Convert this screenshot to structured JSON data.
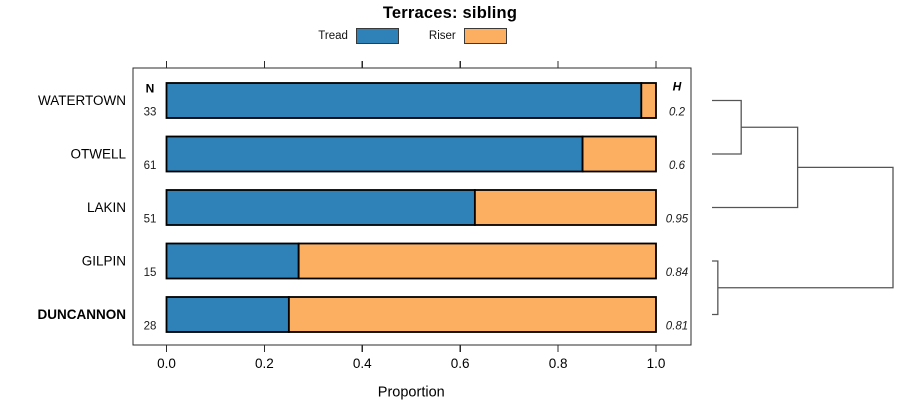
{
  "title": "Terraces: sibling",
  "legend": {
    "items": [
      {
        "label": "Tread",
        "color": "#2E82B8"
      },
      {
        "label": "Riser",
        "color": "#FCAE61"
      }
    ]
  },
  "chart_data": {
    "type": "bar",
    "orientation": "horizontal",
    "stacked": true,
    "title": "Terraces: sibling",
    "xlabel": "Proportion",
    "xlim": [
      0,
      1
    ],
    "grid": false,
    "legend_position": "top-center",
    "series_names": [
      "Tread",
      "Riser"
    ],
    "xticks": [
      {
        "value": 0.0,
        "label": "0.0"
      },
      {
        "value": 0.2,
        "label": "0.2"
      },
      {
        "value": 0.4,
        "label": "0.4"
      },
      {
        "value": 0.6,
        "label": "0.6"
      },
      {
        "value": 0.8,
        "label": "0.8"
      },
      {
        "value": 1.0,
        "label": "1.0"
      }
    ],
    "columns": {
      "left_header": "N",
      "right_header": "H"
    },
    "rows": [
      {
        "site": "WATERTOWN",
        "n": "33",
        "tread": 0.97,
        "riser": 0.03,
        "h": "0.2",
        "emphasis": false
      },
      {
        "site": "OTWELL",
        "n": "61",
        "tread": 0.85,
        "riser": 0.15,
        "h": "0.6",
        "emphasis": false
      },
      {
        "site": "LAKIN",
        "n": "51",
        "tread": 0.63,
        "riser": 0.37,
        "h": "0.95",
        "emphasis": false
      },
      {
        "site": "GILPIN",
        "n": "15",
        "tread": 0.27,
        "riser": 0.73,
        "h": "0.84",
        "emphasis": false
      },
      {
        "site": "DUNCANNON",
        "n": "28",
        "tread": 0.25,
        "riser": 0.75,
        "h": "0.81",
        "emphasis": true
      }
    ],
    "dendrogram": {
      "orientation": "leaves-left-root-right",
      "max_height": 0.93,
      "merges": [
        {
          "a": "leaf0",
          "b": "leaf1",
          "height": 0.15,
          "label": "WATERTOWN+OTWELL"
        },
        {
          "a": "leaf3",
          "b": "leaf4",
          "height": 0.03,
          "label": "GILPIN+DUNCANNON"
        },
        {
          "a": "merge0",
          "b": "leaf2",
          "height": 0.44,
          "label": "(WATERTOWN+OTWELL)+LAKIN"
        },
        {
          "a": "merge2",
          "b": "merge1",
          "height": 0.93,
          "label": "root"
        }
      ]
    }
  }
}
